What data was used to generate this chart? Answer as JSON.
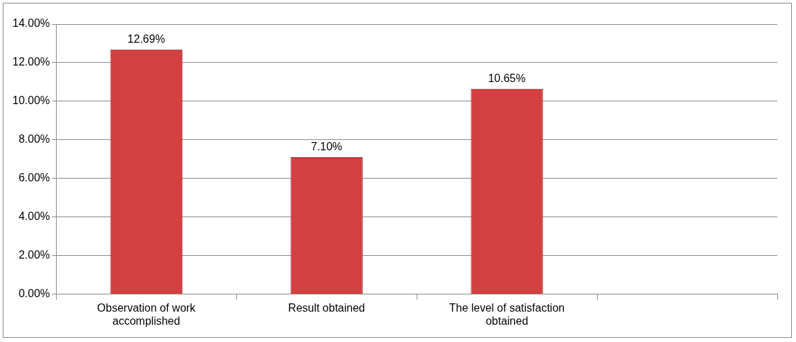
{
  "chart_data": {
    "type": "bar",
    "categories": [
      "Observation of work accomplished",
      "Result obtained",
      "The level of satisfaction obtained",
      null
    ],
    "values": [
      12.69,
      7.1,
      10.65,
      null
    ],
    "color": "#d24040",
    "value_labels": [
      "12.69%",
      "7.10%",
      "10.65%",
      null
    ],
    "ylim": [
      0,
      14
    ],
    "yticks": [
      {
        "value": 0,
        "label": "0.00%"
      },
      {
        "value": 2,
        "label": "2.00%"
      },
      {
        "value": 4,
        "label": "4.00%"
      },
      {
        "value": 6,
        "label": "6.00%"
      },
      {
        "value": 8,
        "label": "8.00%"
      },
      {
        "value": 10,
        "label": "10.00%"
      },
      {
        "value": 12,
        "label": "12.00%"
      },
      {
        "value": 14,
        "label": "14.00%"
      }
    ],
    "grid": "y",
    "legend": false
  }
}
